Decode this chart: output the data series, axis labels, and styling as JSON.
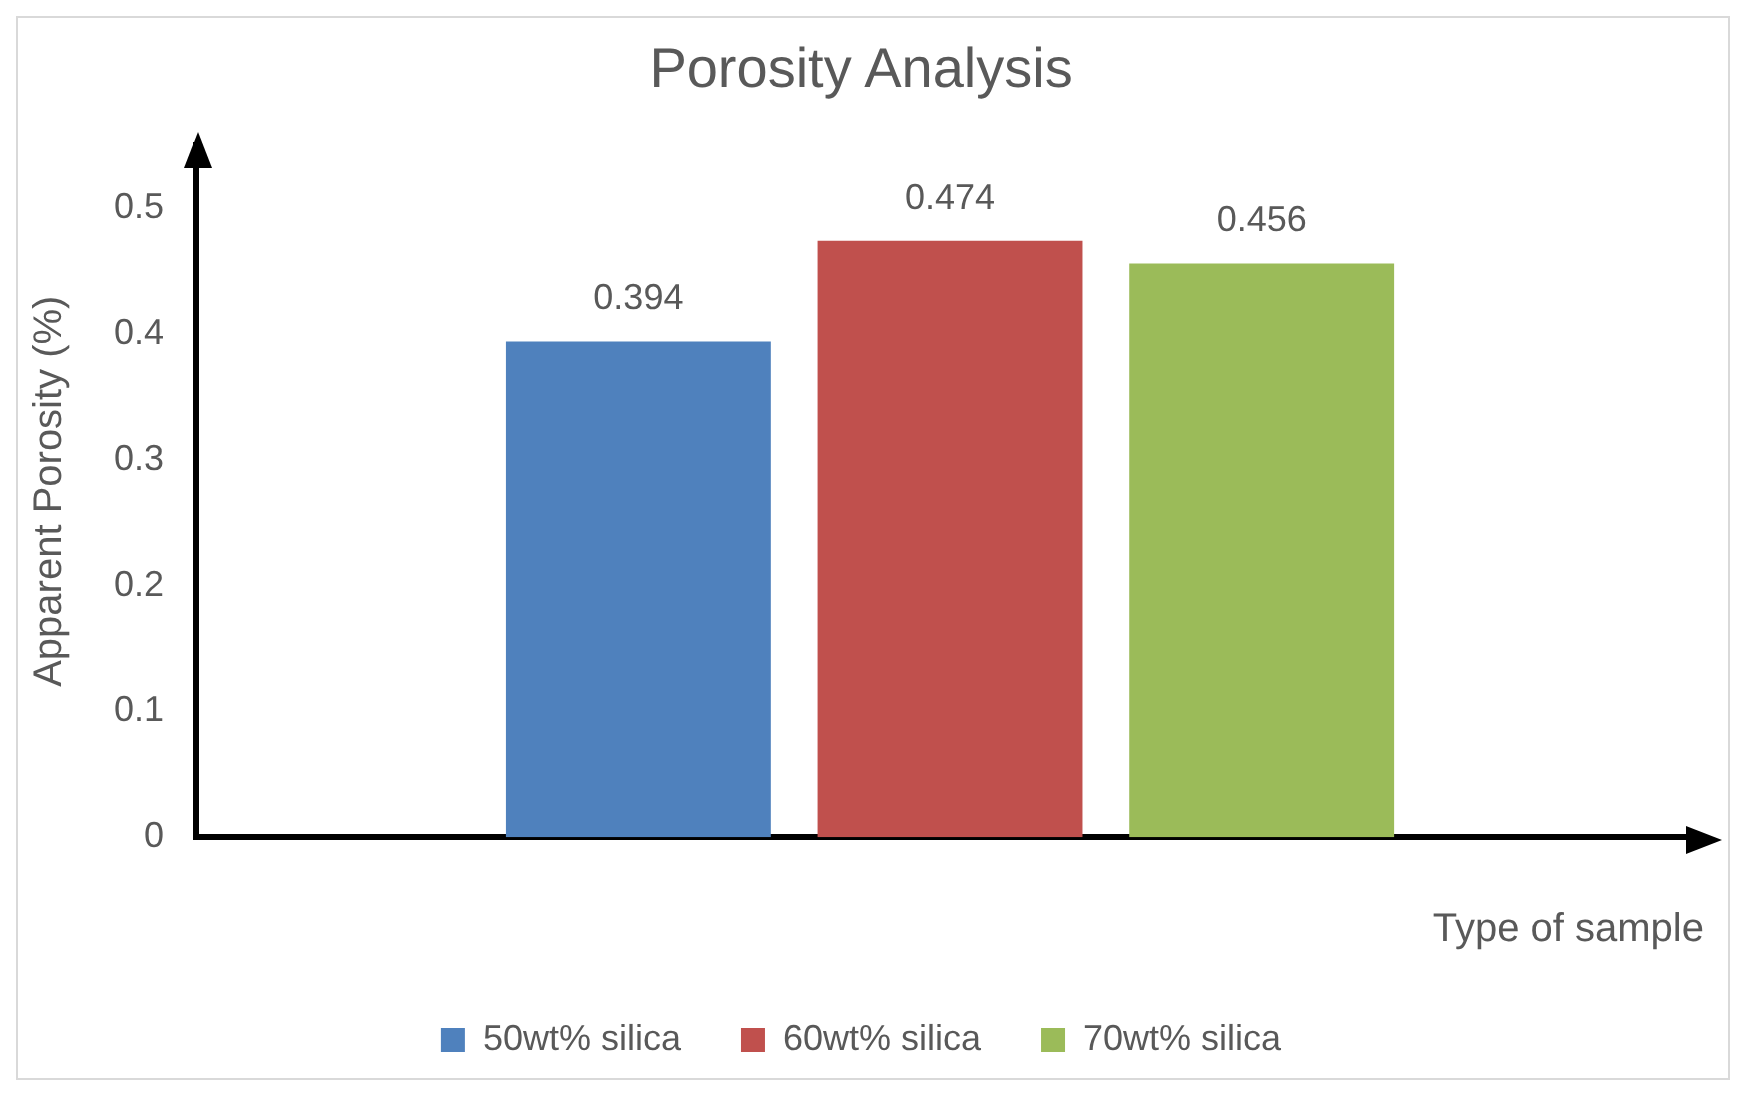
{
  "chart_data": {
    "type": "bar",
    "title": "Porosity Analysis",
    "xlabel": "Type of sample",
    "ylabel": "Apparent Porosity (%)",
    "categories": [
      null
    ],
    "series": [
      {
        "name": "50wt% silica",
        "color": "#4f81bd",
        "values": [
          0.394
        ]
      },
      {
        "name": "60wt% silica",
        "color": "#c0504d",
        "values": [
          0.474
        ]
      },
      {
        "name": "70wt% silica",
        "color": "#9bbb59",
        "values": [
          0.456
        ]
      }
    ],
    "ylim": [
      0,
      0.55
    ],
    "yticks": [
      0,
      0.1,
      0.2,
      0.3,
      0.4,
      0.5
    ],
    "data_labels": true,
    "legend": "bottom"
  }
}
